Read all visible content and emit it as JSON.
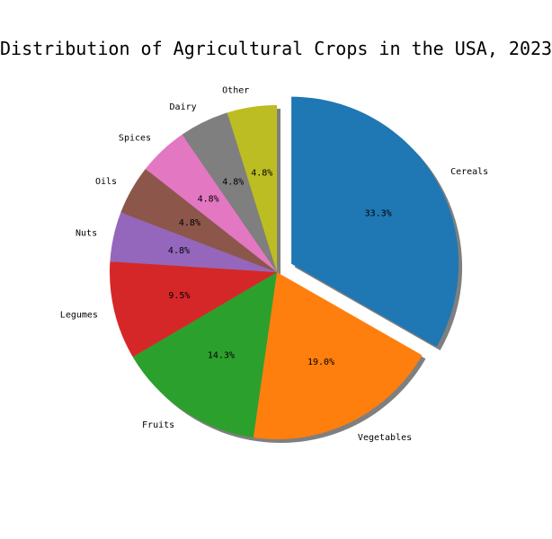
{
  "chart_data": {
    "type": "pie",
    "title": "Distribution of Agricultural Crops in the USA, 2023",
    "categories": [
      "Cereals",
      "Vegetables",
      "Fruits",
      "Legumes",
      "Nuts",
      "Oils",
      "Spices",
      "Dairy",
      "Other"
    ],
    "values": [
      33.3,
      19.0,
      14.3,
      9.5,
      4.8,
      4.8,
      4.8,
      4.8,
      4.8
    ],
    "value_labels": [
      "33.3%",
      "19.0%",
      "14.3%",
      "9.5%",
      "4.8%",
      "4.8%",
      "4.8%",
      "4.8%",
      "4.8%"
    ],
    "colors": [
      "#1f77b4",
      "#ff7f0e",
      "#2ca02c",
      "#d62728",
      "#9467bd",
      "#8c564b",
      "#e377c2",
      "#7f7f7f",
      "#bcbd22"
    ],
    "exploded": [
      "Cereals"
    ],
    "start_angle_deg": 90,
    "direction": "clockwise",
    "shadow": true
  }
}
